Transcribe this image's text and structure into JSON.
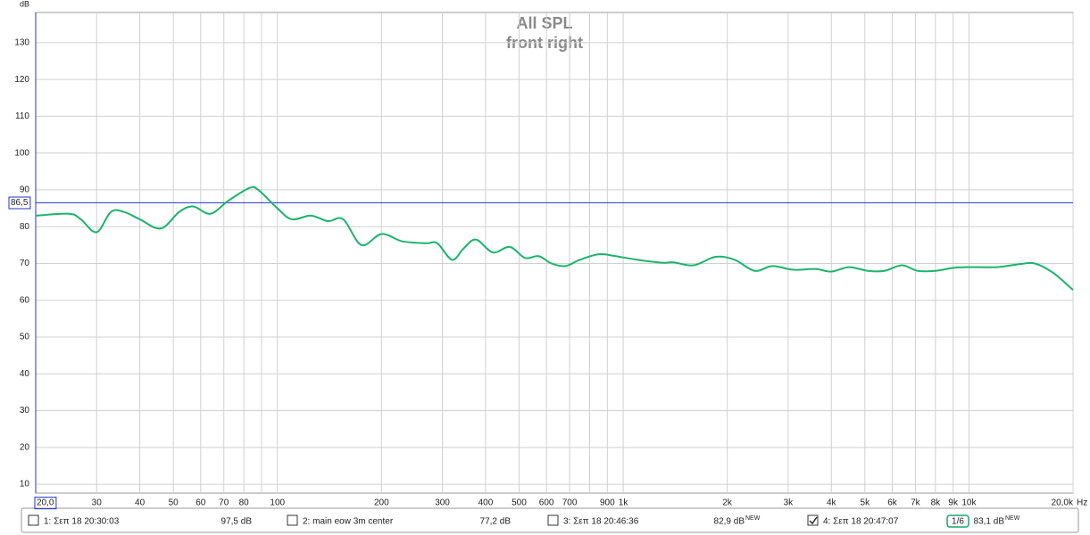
{
  "chart_data": {
    "type": "line",
    "title": "All SPL",
    "subtitle": "front right",
    "y_unit": "dB",
    "x_unit": "Hz",
    "xscale": "log",
    "grid": true,
    "xlim": [
      20,
      20000
    ],
    "ylim": [
      7.6,
      138.2
    ],
    "xticks": [
      {
        "value": 20,
        "label": "20,0"
      },
      30,
      40,
      50,
      60,
      70,
      80,
      100,
      200,
      300,
      400,
      500,
      600,
      700,
      900,
      {
        "value": 1000,
        "label": "1k"
      },
      {
        "value": 2000,
        "label": "2k"
      },
      {
        "value": 3000,
        "label": "3k"
      },
      {
        "value": 4000,
        "label": "4k"
      },
      {
        "value": 5000,
        "label": "5k"
      },
      {
        "value": 6000,
        "label": "6k"
      },
      {
        "value": 7000,
        "label": "7k"
      },
      {
        "value": 8000,
        "label": "8k"
      },
      {
        "value": 9000,
        "label": "9k"
      },
      {
        "value": 10000,
        "label": "10k"
      },
      {
        "value": 20000,
        "label": "20,0k"
      }
    ],
    "minor_xticks": [
      90,
      800
    ],
    "yticks": [
      10,
      20,
      30,
      40,
      50,
      60,
      70,
      80,
      90,
      100,
      110,
      120,
      130
    ],
    "cursor_y": {
      "value": 86.5,
      "label": "86,5"
    },
    "x": [
      20,
      25,
      27,
      30,
      33,
      36,
      40,
      46,
      52,
      57,
      64,
      72,
      83,
      88,
      100,
      110,
      125,
      140,
      155,
      175,
      200,
      230,
      270,
      290,
      320,
      345,
      375,
      420,
      470,
      520,
      570,
      620,
      680,
      750,
      850,
      950,
      1100,
      1300,
      1400,
      1600,
      1850,
      2100,
      2400,
      2700,
      3100,
      3600,
      4000,
      4500,
      5100,
      5700,
      6400,
      7100,
      8000,
      9000,
      10000,
      12000,
      14000,
      15500,
      17500,
      20000
    ],
    "series": [
      {
        "name": "4: Σεπ 18 20:47:07",
        "color": "#1db36b",
        "values": [
          83,
          83.5,
          82,
          78.5,
          84,
          84,
          82,
          79.5,
          84,
          85.5,
          83.5,
          87,
          90.5,
          90,
          85,
          82,
          83,
          81.5,
          82,
          75,
          78,
          76,
          75.5,
          75.5,
          71,
          74,
          76.5,
          73,
          74.5,
          71.5,
          72,
          70,
          69.3,
          71,
          72.5,
          72,
          71,
          70.2,
          70.3,
          69.5,
          71.8,
          71,
          68,
          69.3,
          68.3,
          68.5,
          67.8,
          69,
          68,
          68,
          69.5,
          68,
          68,
          68.8,
          69,
          69,
          69.8,
          70,
          67.5,
          62.8
        ]
      }
    ],
    "legend": [
      {
        "label": "1: Σεπ 18 20:30:03",
        "value_label": "97,5 dB",
        "color": "#9b1b9b",
        "checked": false
      },
      {
        "label": "2: main eow 3m center",
        "value_label": "77,2 dB",
        "color": "#138a8a",
        "checked": false
      },
      {
        "label": "3: Σεπ 18 20:46:36",
        "value_label": "82,9 dB",
        "color": "#b8860b",
        "checked": false,
        "new": "NEW"
      },
      {
        "label": "4: Σεπ 18 20:47:07",
        "value_label": "83,1 dB",
        "color": "#1aa36a",
        "checked": true,
        "smoothing": "1/6",
        "new": "NEW"
      }
    ]
  }
}
